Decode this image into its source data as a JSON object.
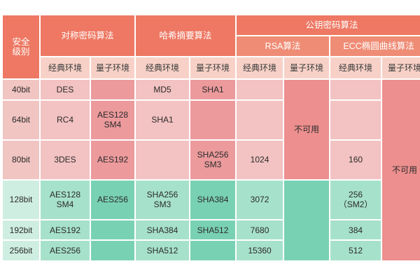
{
  "headers": {
    "security_level": "安全\n级别",
    "symmetric": "对称密码算法",
    "hash": "哈希摘要算法",
    "public_key": "公钥密码算法",
    "rsa": "RSA算法",
    "ecc": "ECC椭圆曲线算法",
    "classical": "经典环境",
    "quantum": "量子环境"
  },
  "not_available": "不可用",
  "rows": [
    {
      "level": "40bit",
      "sym_classical": "DES",
      "sym_quantum": "",
      "hash_classical": "MD5",
      "hash_quantum": "SHA1",
      "rsa_classical": "",
      "ecc_classical": ""
    },
    {
      "level": "64bit",
      "sym_classical": "RC4",
      "sym_quantum": "AES128\nSM4",
      "hash_classical": "SHA1",
      "hash_quantum": "",
      "rsa_classical": "",
      "ecc_classical": ""
    },
    {
      "level": "80bit",
      "sym_classical": "3DES",
      "sym_quantum": "AES192",
      "hash_classical": "",
      "hash_quantum": "SHA256\nSM3",
      "rsa_classical": "1024",
      "ecc_classical": "160"
    },
    {
      "level": "128bit",
      "sym_classical": "AES128\nSM4",
      "sym_quantum": "AES256",
      "hash_classical": "SHA256\nSM3",
      "hash_quantum": "SHA384",
      "rsa_classical": "3072",
      "ecc_classical": "256\n（SM2）"
    },
    {
      "level": "192bit",
      "sym_classical": "AES192",
      "sym_quantum": "",
      "hash_classical": "SHA384",
      "hash_quantum": "SHA512",
      "rsa_classical": "7680",
      "ecc_classical": "384"
    },
    {
      "level": "256bit",
      "sym_classical": "AES256",
      "sym_quantum": "",
      "hash_classical": "SHA512",
      "hash_quantum": "",
      "rsa_classical": "15360",
      "ecc_classical": "512"
    }
  ],
  "colors": {
    "header_dark": "#ee7863",
    "header_light": "#f7d1c7",
    "pink": "#f3c2c2",
    "pink_dark": "#ec9a9c",
    "green": "#a6e1cb",
    "green_dark": "#79d1b3"
  }
}
